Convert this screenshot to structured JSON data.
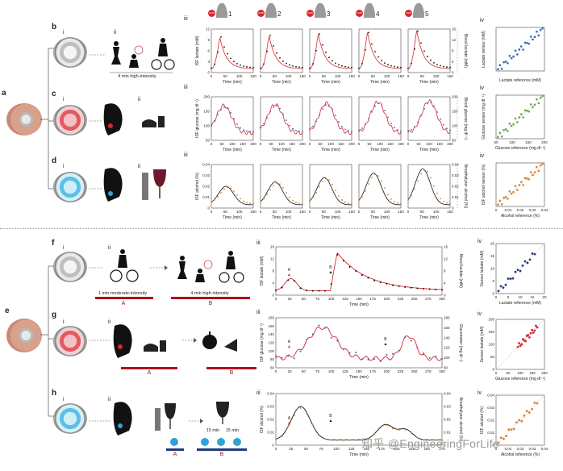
{
  "panel_letters": {
    "a": "a",
    "b": "b",
    "c": "c",
    "d": "d",
    "e": "e",
    "f": "f",
    "g": "g",
    "h": "h"
  },
  "roman": {
    "i": "i",
    "ii": "ii",
    "iii": "iii",
    "iv": "iv"
  },
  "top": {
    "subjects": [
      "1",
      "2",
      "3",
      "4",
      "5"
    ],
    "badge_text": "CMS",
    "b_caption": "4 min high-intensity",
    "row_b": {
      "ylabel": "ISF lactate (mM)",
      "y2label": "Blood lactate (mM)",
      "xlabel": "Time (min)",
      "yticks": [
        "0",
        "3",
        "6",
        "9",
        "12"
      ],
      "y2ticks": [
        "0",
        "4",
        "8",
        "12",
        "16"
      ],
      "xticks": [
        "0",
        "50",
        "100",
        "150"
      ]
    },
    "row_c": {
      "ylabel": "ISF glucose (mg dl⁻¹)",
      "y2label": "Blood glucose (mg dl⁻¹)",
      "xlabel": "Time (min)",
      "yticks": [
        "50",
        "100",
        "150",
        "200"
      ],
      "xticks": [
        "0",
        "50",
        "100",
        "150",
        "200"
      ]
    },
    "row_d": {
      "ylabel": "ISF alcohol (%)",
      "y2label": "Breathalyzer alcohol (%)",
      "xlabel": "Time (min)",
      "yticks": [
        "0",
        "0.01",
        "0.02",
        "0.03",
        "0.04"
      ],
      "xticks": [
        "0",
        "50",
        "100",
        "150"
      ]
    },
    "corr_b": {
      "xlabel": "Lactate reference (mM)",
      "ylabel": "Lactate sensor (mM)"
    },
    "corr_c": {
      "xlabel": "Glucose reference (mg dl⁻¹)",
      "ylabel": "Glucose sensor (mg dl⁻¹)",
      "xticks": [
        "50",
        "100",
        "150",
        "200"
      ]
    },
    "corr_d": {
      "xlabel": "Alcohol reference (%)",
      "ylabel": "ISF alcohol sensor (%)",
      "xticks": [
        "0",
        "0.01",
        "0.02",
        "0.03",
        "0.04"
      ]
    }
  },
  "bottom": {
    "f": {
      "cap_a": "1 min moderate-intensity",
      "cap_b": "4 min high-intensity",
      "label_a": "A",
      "label_b": "B",
      "ylabel": "ISF lactate (mM)",
      "y2label": "Blood lactate (mM)",
      "xlabel": "Time (min)",
      "yticks": [
        "0",
        "4",
        "8",
        "12",
        "16"
      ],
      "xticks": [
        "0",
        "25",
        "50",
        "75",
        "100",
        "125",
        "150",
        "175",
        "200",
        "225",
        "250",
        "275",
        "300"
      ],
      "corr_x": "Lactate reference (mM)",
      "corr_y": "Sensor lactate (mM)",
      "corr_ticks": [
        "0",
        "5",
        "10",
        "15",
        "20"
      ]
    },
    "g": {
      "label_a": "A",
      "label_b": "B",
      "ylabel": "ISF glucose (mg dl⁻¹)",
      "y2label": "Glucometer (mg dl⁻¹)",
      "xlabel": "Time (min)",
      "yticks": [
        "60",
        "80",
        "100",
        "120",
        "140",
        "160",
        "180"
      ],
      "y2ticks": [
        "80",
        "100",
        "120",
        "140",
        "160",
        "180"
      ],
      "xticks": [
        "0",
        "25",
        "50",
        "75",
        "100",
        "125",
        "150",
        "175",
        "200",
        "225",
        "250",
        "275",
        "300"
      ],
      "corr_x": "Glucose reference (mg dl⁻¹)",
      "corr_y": "Sensor lactate (mM)",
      "corr_ticks": [
        "0",
        "50",
        "100",
        "150",
        "200"
      ]
    },
    "h": {
      "label_a": "A",
      "label_b": "B",
      "min1": "15 min",
      "min2": "15 min",
      "ylabel": "ISF alcohol (%)",
      "y2label": "Breathalyzer alcohol (%)",
      "xlabel": "Time (min)",
      "yticks": [
        "0",
        "0.01",
        "0.02",
        "0.03",
        "0.04"
      ],
      "xticks": [
        "0",
        "25",
        "50",
        "75",
        "100",
        "125",
        "150",
        "175",
        "200",
        "225",
        "250",
        "275"
      ],
      "corr_x": "Alcohol reference (%)",
      "corr_y": "ISF alcohol (%)",
      "corr_ticks": [
        "0",
        "0.01",
        "0.02",
        "0.03",
        "0.04"
      ]
    }
  },
  "watermark": "知乎 @EngineeringForLife",
  "colors": {
    "red": "#d9262f",
    "blue": "#3a68b8",
    "green": "#6aa84f",
    "orange": "#d9822b",
    "cyan": "#2fa3d6",
    "navy": "#1f3c7a"
  }
}
